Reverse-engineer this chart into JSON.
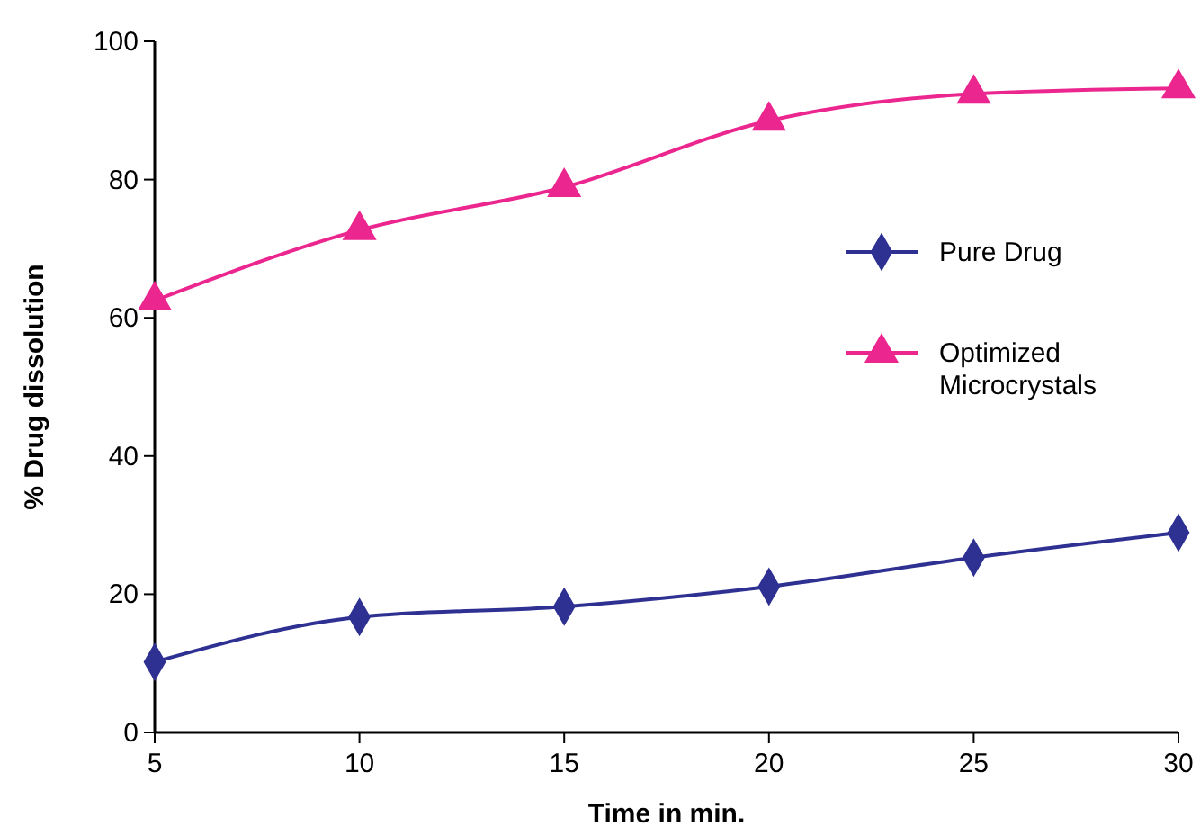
{
  "chart_data": {
    "type": "line",
    "xlabel": "Time in min.",
    "ylabel": "% Drug dissolution",
    "x": [
      5,
      10,
      15,
      20,
      25,
      30
    ],
    "xlim": [
      5,
      30
    ],
    "xticks": [
      5,
      10,
      15,
      20,
      25,
      30
    ],
    "ylim": [
      0,
      100
    ],
    "yticks": [
      0,
      20,
      40,
      60,
      80,
      100
    ],
    "grid": false,
    "legend": "right",
    "line_style": "solid",
    "series": [
      {
        "name": "Pure Drug",
        "color": "#2e3192",
        "marker": "diamond",
        "values": [
          10.2,
          16.7,
          18.2,
          21.1,
          25.3,
          28.9
        ]
      },
      {
        "name": "Optimized Microcrystals",
        "color": "#ec268f",
        "marker": "triangle",
        "values": [
          62.5,
          72.7,
          78.9,
          88.5,
          92.4,
          93.2
        ]
      }
    ]
  }
}
